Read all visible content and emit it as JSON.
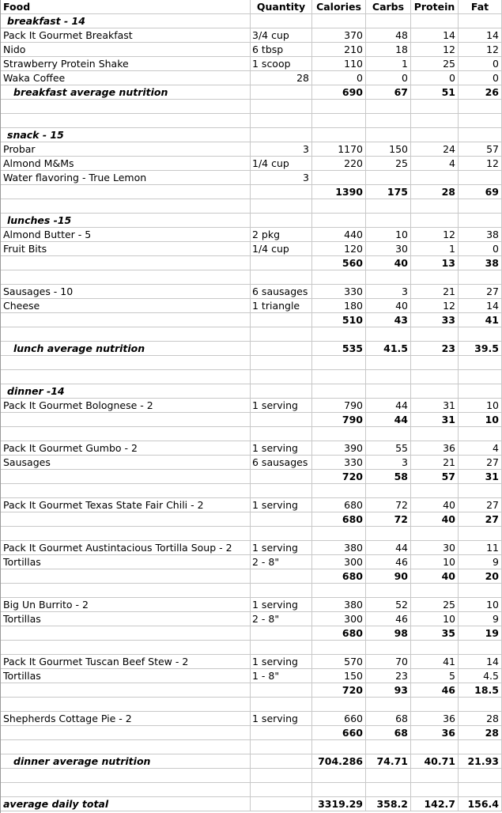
{
  "header": [
    "Food",
    "Quantity",
    "Calories",
    "Carbs",
    "Protein",
    "Fat"
  ],
  "rows": [
    {
      "type": "section",
      "label": "breakfast - 14"
    },
    {
      "type": "item",
      "food": "Pack It Gourmet Breakfast",
      "qty": "3/4 cup",
      "cal": "370",
      "carbs": "48",
      "protein": "14",
      "fat": "14"
    },
    {
      "type": "item",
      "food": "Nido",
      "qty": "6 tbsp",
      "cal": "210",
      "carbs": "18",
      "protein": "12",
      "fat": "12"
    },
    {
      "type": "item",
      "food": "Strawberry Protein Shake",
      "qty": "1 scoop",
      "cal": "110",
      "carbs": "1",
      "protein": "25",
      "fat": "0"
    },
    {
      "type": "item",
      "food": "Waka Coffee",
      "qty": "28",
      "qty_right": true,
      "cal": "0",
      "carbs": "0",
      "protein": "0",
      "fat": "0"
    },
    {
      "type": "average",
      "food": "breakfast average nutrition",
      "cal": "690",
      "carbs": "67",
      "protein": "51",
      "fat": "26"
    },
    {
      "type": "blank"
    },
    {
      "type": "blank"
    },
    {
      "type": "section",
      "label": "snack - 15"
    },
    {
      "type": "item",
      "food": "Probar",
      "qty": "3",
      "qty_right": true,
      "cal": "1170",
      "carbs": "150",
      "protein": "24",
      "fat": "57"
    },
    {
      "type": "item",
      "food": "Almond M&Ms",
      "qty": "1/4 cup",
      "cal": "220",
      "carbs": "25",
      "protein": "4",
      "fat": "12"
    },
    {
      "type": "item",
      "food": "Water flavoring - True Lemon",
      "qty": "3",
      "qty_right": true,
      "cal": "",
      "carbs": "",
      "protein": "",
      "fat": ""
    },
    {
      "type": "total",
      "food": "",
      "cal": "1390",
      "carbs": "175",
      "protein": "28",
      "fat": "69"
    },
    {
      "type": "blank"
    },
    {
      "type": "section",
      "label": "lunches -15"
    },
    {
      "type": "item",
      "food": "Almond Butter - 5",
      "qty": "2 pkg",
      "cal": "440",
      "carbs": "10",
      "protein": "12",
      "fat": "38"
    },
    {
      "type": "item",
      "food": "Fruit Bits",
      "qty": "1/4 cup",
      "cal": "120",
      "carbs": "30",
      "protein": "1",
      "fat": "0"
    },
    {
      "type": "total",
      "food": "",
      "cal": "560",
      "carbs": "40",
      "protein": "13",
      "fat": "38"
    },
    {
      "type": "blank"
    },
    {
      "type": "item",
      "food": "Sausages - 10",
      "qty": "6 sausages",
      "cal": "330",
      "carbs": "3",
      "protein": "21",
      "fat": "27"
    },
    {
      "type": "item",
      "food": "Cheese",
      "qty": "1 triangle",
      "cal": "180",
      "carbs": "40",
      "protein": "12",
      "fat": "14"
    },
    {
      "type": "total",
      "food": "",
      "cal": "510",
      "carbs": "43",
      "protein": "33",
      "fat": "41"
    },
    {
      "type": "blank"
    },
    {
      "type": "average",
      "food": "lunch average nutrition",
      "cal": "535",
      "carbs": "41.5",
      "protein": "23",
      "fat": "39.5"
    },
    {
      "type": "blank"
    },
    {
      "type": "blank"
    },
    {
      "type": "section",
      "label": "dinner -14"
    },
    {
      "type": "item",
      "food": "Pack It Gourmet Bolognese - 2",
      "qty": "1 serving",
      "cal": "790",
      "carbs": "44",
      "protein": "31",
      "fat": "10"
    },
    {
      "type": "total",
      "food": "",
      "cal": "790",
      "carbs": "44",
      "protein": "31",
      "fat": "10"
    },
    {
      "type": "blank"
    },
    {
      "type": "item",
      "food": "Pack It Gourmet Gumbo - 2",
      "qty": "1 serving",
      "cal": "390",
      "carbs": "55",
      "protein": "36",
      "fat": "4"
    },
    {
      "type": "item",
      "food": "Sausages",
      "qty": "6 sausages",
      "cal": "330",
      "carbs": "3",
      "protein": "21",
      "fat": "27"
    },
    {
      "type": "total",
      "food": "",
      "cal": "720",
      "carbs": "58",
      "protein": "57",
      "fat": "31"
    },
    {
      "type": "blank"
    },
    {
      "type": "item",
      "food": "Pack It Gourmet Texas State Fair Chili - 2",
      "qty": "1 serving",
      "cal": "680",
      "carbs": "72",
      "protein": "40",
      "fat": "27"
    },
    {
      "type": "total",
      "food": "",
      "cal": "680",
      "carbs": "72",
      "protein": "40",
      "fat": "27"
    },
    {
      "type": "blank"
    },
    {
      "type": "item",
      "food": "Pack It Gourmet Austintacious Tortilla Soup - 2",
      "qty": "1 serving",
      "cal": "380",
      "carbs": "44",
      "protein": "30",
      "fat": "11"
    },
    {
      "type": "item",
      "food": "Tortillas",
      "qty": "2 - 8\"",
      "cal": "300",
      "carbs": "46",
      "protein": "10",
      "fat": "9"
    },
    {
      "type": "total",
      "food": "",
      "cal": "680",
      "carbs": "90",
      "protein": "40",
      "fat": "20"
    },
    {
      "type": "blank"
    },
    {
      "type": "item",
      "food": "Big Un Burrito - 2",
      "qty": "1 serving",
      "cal": "380",
      "carbs": "52",
      "protein": "25",
      "fat": "10"
    },
    {
      "type": "item",
      "food": "Tortillas",
      "qty": "2 - 8\"",
      "cal": "300",
      "carbs": "46",
      "protein": "10",
      "fat": "9"
    },
    {
      "type": "total",
      "food": "",
      "cal": "680",
      "carbs": "98",
      "protein": "35",
      "fat": "19"
    },
    {
      "type": "blank"
    },
    {
      "type": "item",
      "food": "Pack It Gourmet Tuscan Beef Stew - 2",
      "qty": "1 serving",
      "cal": "570",
      "carbs": "70",
      "protein": "41",
      "fat": "14"
    },
    {
      "type": "item",
      "food": "Tortillas",
      "qty": "1 - 8\"",
      "cal": "150",
      "carbs": "23",
      "protein": "5",
      "fat": "4.5"
    },
    {
      "type": "total",
      "food": "",
      "cal": "720",
      "carbs": "93",
      "protein": "46",
      "fat": "18.5"
    },
    {
      "type": "blank"
    },
    {
      "type": "item",
      "food": "Shepherds Cottage Pie - 2",
      "qty": "1  serving",
      "cal": "660",
      "carbs": "68",
      "protein": "36",
      "fat": "28"
    },
    {
      "type": "total",
      "food": "",
      "cal": "660",
      "carbs": "68",
      "protein": "36",
      "fat": "28"
    },
    {
      "type": "blank"
    },
    {
      "type": "average",
      "food": "dinner average nutrition",
      "cal": "704.286",
      "carbs": "74.71",
      "protein": "40.71",
      "fat": "21.93"
    },
    {
      "type": "blank"
    },
    {
      "type": "blank"
    },
    {
      "type": "grand",
      "food": "average daily total",
      "cal": "3319.29",
      "carbs": "358.2",
      "protein": "142.7",
      "fat": "156.4"
    }
  ]
}
